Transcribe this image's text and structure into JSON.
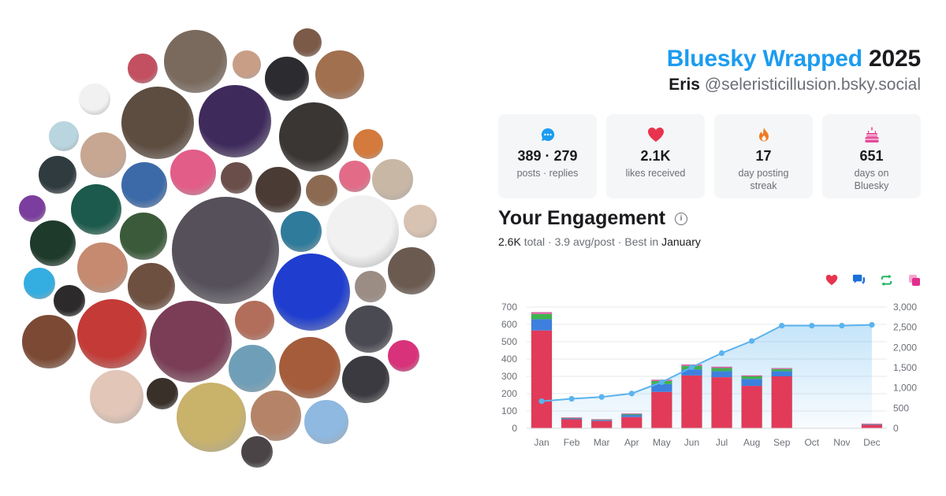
{
  "header": {
    "brand": "Bluesky Wrapped",
    "year": "2025",
    "display_name": "Eris",
    "handle": "@seleristicillusion.bsky.social"
  },
  "stats": [
    {
      "icon": "chat-bubble-icon",
      "color": "#1c9cf0",
      "value": "389 · 279",
      "label": "posts · replies"
    },
    {
      "icon": "heart-icon",
      "color": "#e8344e",
      "value": "2.1K",
      "label": "likes received"
    },
    {
      "icon": "flame-icon",
      "color": "#f07a24",
      "value": "17",
      "label": "day posting streak"
    },
    {
      "icon": "cake-icon",
      "color": "#e64a9a",
      "value": "651",
      "label": "days on Bluesky"
    }
  ],
  "engagement": {
    "title": "Your Engagement",
    "total": "2.6K",
    "total_word": "total",
    "avg": "3.9 avg/post",
    "best_prefix": "Best in",
    "best_month": "January"
  },
  "legend": [
    {
      "icon": "heart-icon",
      "color": "#e8344e"
    },
    {
      "icon": "reply-icon",
      "color": "#1c6fd9"
    },
    {
      "icon": "repost-icon",
      "color": "#16b05a"
    },
    {
      "icon": "quote-icon",
      "color": "#e12d8e"
    }
  ],
  "chart_data": {
    "type": "bar",
    "categories": [
      "Jan",
      "Feb",
      "Mar",
      "Apr",
      "May",
      "Jun",
      "Jul",
      "Aug",
      "Sep",
      "Oct",
      "Nov",
      "Dec"
    ],
    "series": [
      {
        "values": [
          565,
          52,
          42,
          65,
          210,
          305,
          295,
          245,
          300,
          0,
          0,
          20
        ],
        "color": "#e23a59"
      },
      {
        "values": [
          65,
          5,
          5,
          12,
          45,
          35,
          35,
          40,
          30,
          0,
          0,
          3
        ],
        "color": "#3d80dd"
      },
      {
        "values": [
          30,
          3,
          3,
          5,
          18,
          20,
          18,
          15,
          12,
          0,
          0,
          2
        ],
        "color": "#3fb34f"
      },
      {
        "values": [
          10,
          2,
          2,
          3,
          7,
          8,
          7,
          5,
          5,
          0,
          0,
          1
        ],
        "color": "#e35fab"
      }
    ],
    "cumulative": {
      "values": [
        670,
        730,
        775,
        860,
        1140,
        1510,
        1860,
        2160,
        2540,
        2540,
        2540,
        2560
      ],
      "color": "#5bb3ee"
    },
    "ylim_left": [
      0,
      700
    ],
    "yticks_left": [
      "0",
      "100",
      "200",
      "300",
      "400",
      "500",
      "600",
      "700"
    ],
    "ylim_right": [
      0,
      3000
    ],
    "yticks_right": [
      "0",
      "500",
      "1,000",
      "1,500",
      "2,000",
      "2,500",
      "3,000"
    ],
    "grid": true
  },
  "avatars": [
    {
      "name": "avatar-1",
      "color": "#7a6a5e"
    },
    {
      "name": "avatar-2",
      "color": "#c25060"
    },
    {
      "name": "avatar-3",
      "color": "#c99e86"
    },
    {
      "name": "avatar-4",
      "color": "#2b2b30"
    },
    {
      "name": "avatar-5",
      "color": "#7c5a48"
    },
    {
      "name": "avatar-6",
      "color": "#a1704f"
    },
    {
      "name": "avatar-7",
      "color": "#f1f1f1"
    },
    {
      "name": "avatar-8",
      "color": "#5d4c40"
    },
    {
      "name": "avatar-9",
      "color": "#3f2a5c"
    },
    {
      "name": "avatar-10",
      "color": "#3a3634"
    },
    {
      "name": "avatar-11",
      "color": "#d37a3c"
    },
    {
      "name": "avatar-12",
      "color": "#b9d6e0"
    },
    {
      "name": "avatar-13",
      "color": "#c8a792"
    },
    {
      "name": "avatar-14",
      "color": "#2f3b3f"
    },
    {
      "name": "avatar-15",
      "color": "#3c6aa8"
    },
    {
      "name": "avatar-16",
      "color": "#e25d88"
    },
    {
      "name": "avatar-17",
      "color": "#6a4e4a"
    },
    {
      "name": "avatar-18",
      "color": "#4a3b35"
    },
    {
      "name": "avatar-19",
      "color": "#8c6a52"
    },
    {
      "name": "avatar-20",
      "color": "#e26c88"
    },
    {
      "name": "avatar-21",
      "color": "#c9b7a6"
    },
    {
      "name": "avatar-22",
      "color": "#7c3e9e"
    },
    {
      "name": "avatar-23",
      "color": "#1b5a4c"
    },
    {
      "name": "avatar-24",
      "color": "#3a5a3a"
    },
    {
      "name": "avatar-25",
      "color": "#55505a"
    },
    {
      "name": "avatar-26",
      "color": "#2f7b9c"
    },
    {
      "name": "avatar-27",
      "color": "#f1f1f1"
    },
    {
      "name": "avatar-28",
      "color": "#d8c2b2"
    },
    {
      "name": "avatar-29",
      "color": "#1d3a2a"
    },
    {
      "name": "avatar-30",
      "color": "#c58a70"
    },
    {
      "name": "avatar-31",
      "color": "#6e5040"
    },
    {
      "name": "avatar-32",
      "color": "#1f3ecf"
    },
    {
      "name": "avatar-33",
      "color": "#6a5a50"
    },
    {
      "name": "avatar-34",
      "color": "#34aee0"
    },
    {
      "name": "avatar-35",
      "color": "#9b8d84"
    },
    {
      "name": "avatar-36",
      "color": "#2d2a2c"
    },
    {
      "name": "avatar-37",
      "color": "#7c4a34"
    },
    {
      "name": "avatar-38",
      "color": "#c43a36"
    },
    {
      "name": "avatar-39",
      "color": "#7a3d55"
    },
    {
      "name": "avatar-40",
      "color": "#b26e5a"
    },
    {
      "name": "avatar-41",
      "color": "#4a4a52"
    },
    {
      "name": "avatar-42",
      "color": "#6f9fb8"
    },
    {
      "name": "avatar-43",
      "color": "#a45c3a"
    },
    {
      "name": "avatar-44",
      "color": "#d8327a"
    },
    {
      "name": "avatar-45",
      "color": "#3a3a40"
    },
    {
      "name": "avatar-46",
      "color": "#e2c6b8"
    },
    {
      "name": "avatar-47",
      "color": "#3a302a"
    },
    {
      "name": "avatar-48",
      "color": "#c9b26a"
    },
    {
      "name": "avatar-49",
      "color": "#b58468"
    },
    {
      "name": "avatar-50",
      "color": "#8fb9e0"
    },
    {
      "name": "avatar-51",
      "color": "#4a4446"
    },
    {
      "name": "avatar-52",
      "color": "#f2f2f2"
    },
    {
      "name": "avatar-53",
      "color": "#f0c8c8"
    },
    {
      "name": "avatar-54",
      "color": "#f2f2f2"
    }
  ]
}
